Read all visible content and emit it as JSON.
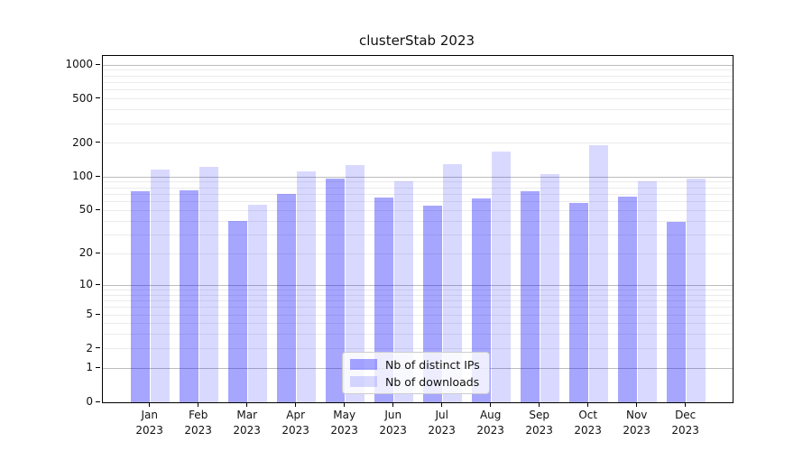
{
  "chart_data": {
    "type": "bar",
    "title": "clusterStab 2023",
    "categories": [
      {
        "month": "Jan",
        "year": "2023"
      },
      {
        "month": "Feb",
        "year": "2023"
      },
      {
        "month": "Mar",
        "year": "2023"
      },
      {
        "month": "Apr",
        "year": "2023"
      },
      {
        "month": "May",
        "year": "2023"
      },
      {
        "month": "Jun",
        "year": "2023"
      },
      {
        "month": "Jul",
        "year": "2023"
      },
      {
        "month": "Aug",
        "year": "2023"
      },
      {
        "month": "Sep",
        "year": "2023"
      },
      {
        "month": "Oct",
        "year": "2023"
      },
      {
        "month": "Nov",
        "year": "2023"
      },
      {
        "month": "Dec",
        "year": "2023"
      }
    ],
    "series": [
      {
        "name": "Nb of distinct IPs",
        "color": "#a6a6ff",
        "fill": "rgba(0,0,255,0.35)",
        "values": [
          75,
          76,
          40,
          70,
          96,
          65,
          55,
          64,
          75,
          58,
          66,
          39
        ]
      },
      {
        "name": "Nb of downloads",
        "color": "#d9d9ff",
        "fill": "rgba(0,0,255,0.15)",
        "values": [
          117,
          123,
          56,
          112,
          127,
          91,
          130,
          168,
          107,
          194,
          92,
          97
        ]
      }
    ],
    "yscale": "log1p",
    "yticks": [
      0,
      1,
      2,
      5,
      10,
      20,
      50,
      100,
      200,
      500,
      1000
    ],
    "major_grid_values": [
      1,
      10,
      100,
      1000
    ],
    "ylim": [
      0,
      1205
    ],
    "grid": true,
    "legend_position": "lower center",
    "grid_major_color": "#bdbdbd",
    "grid_minor_color": "#ebebeb"
  }
}
